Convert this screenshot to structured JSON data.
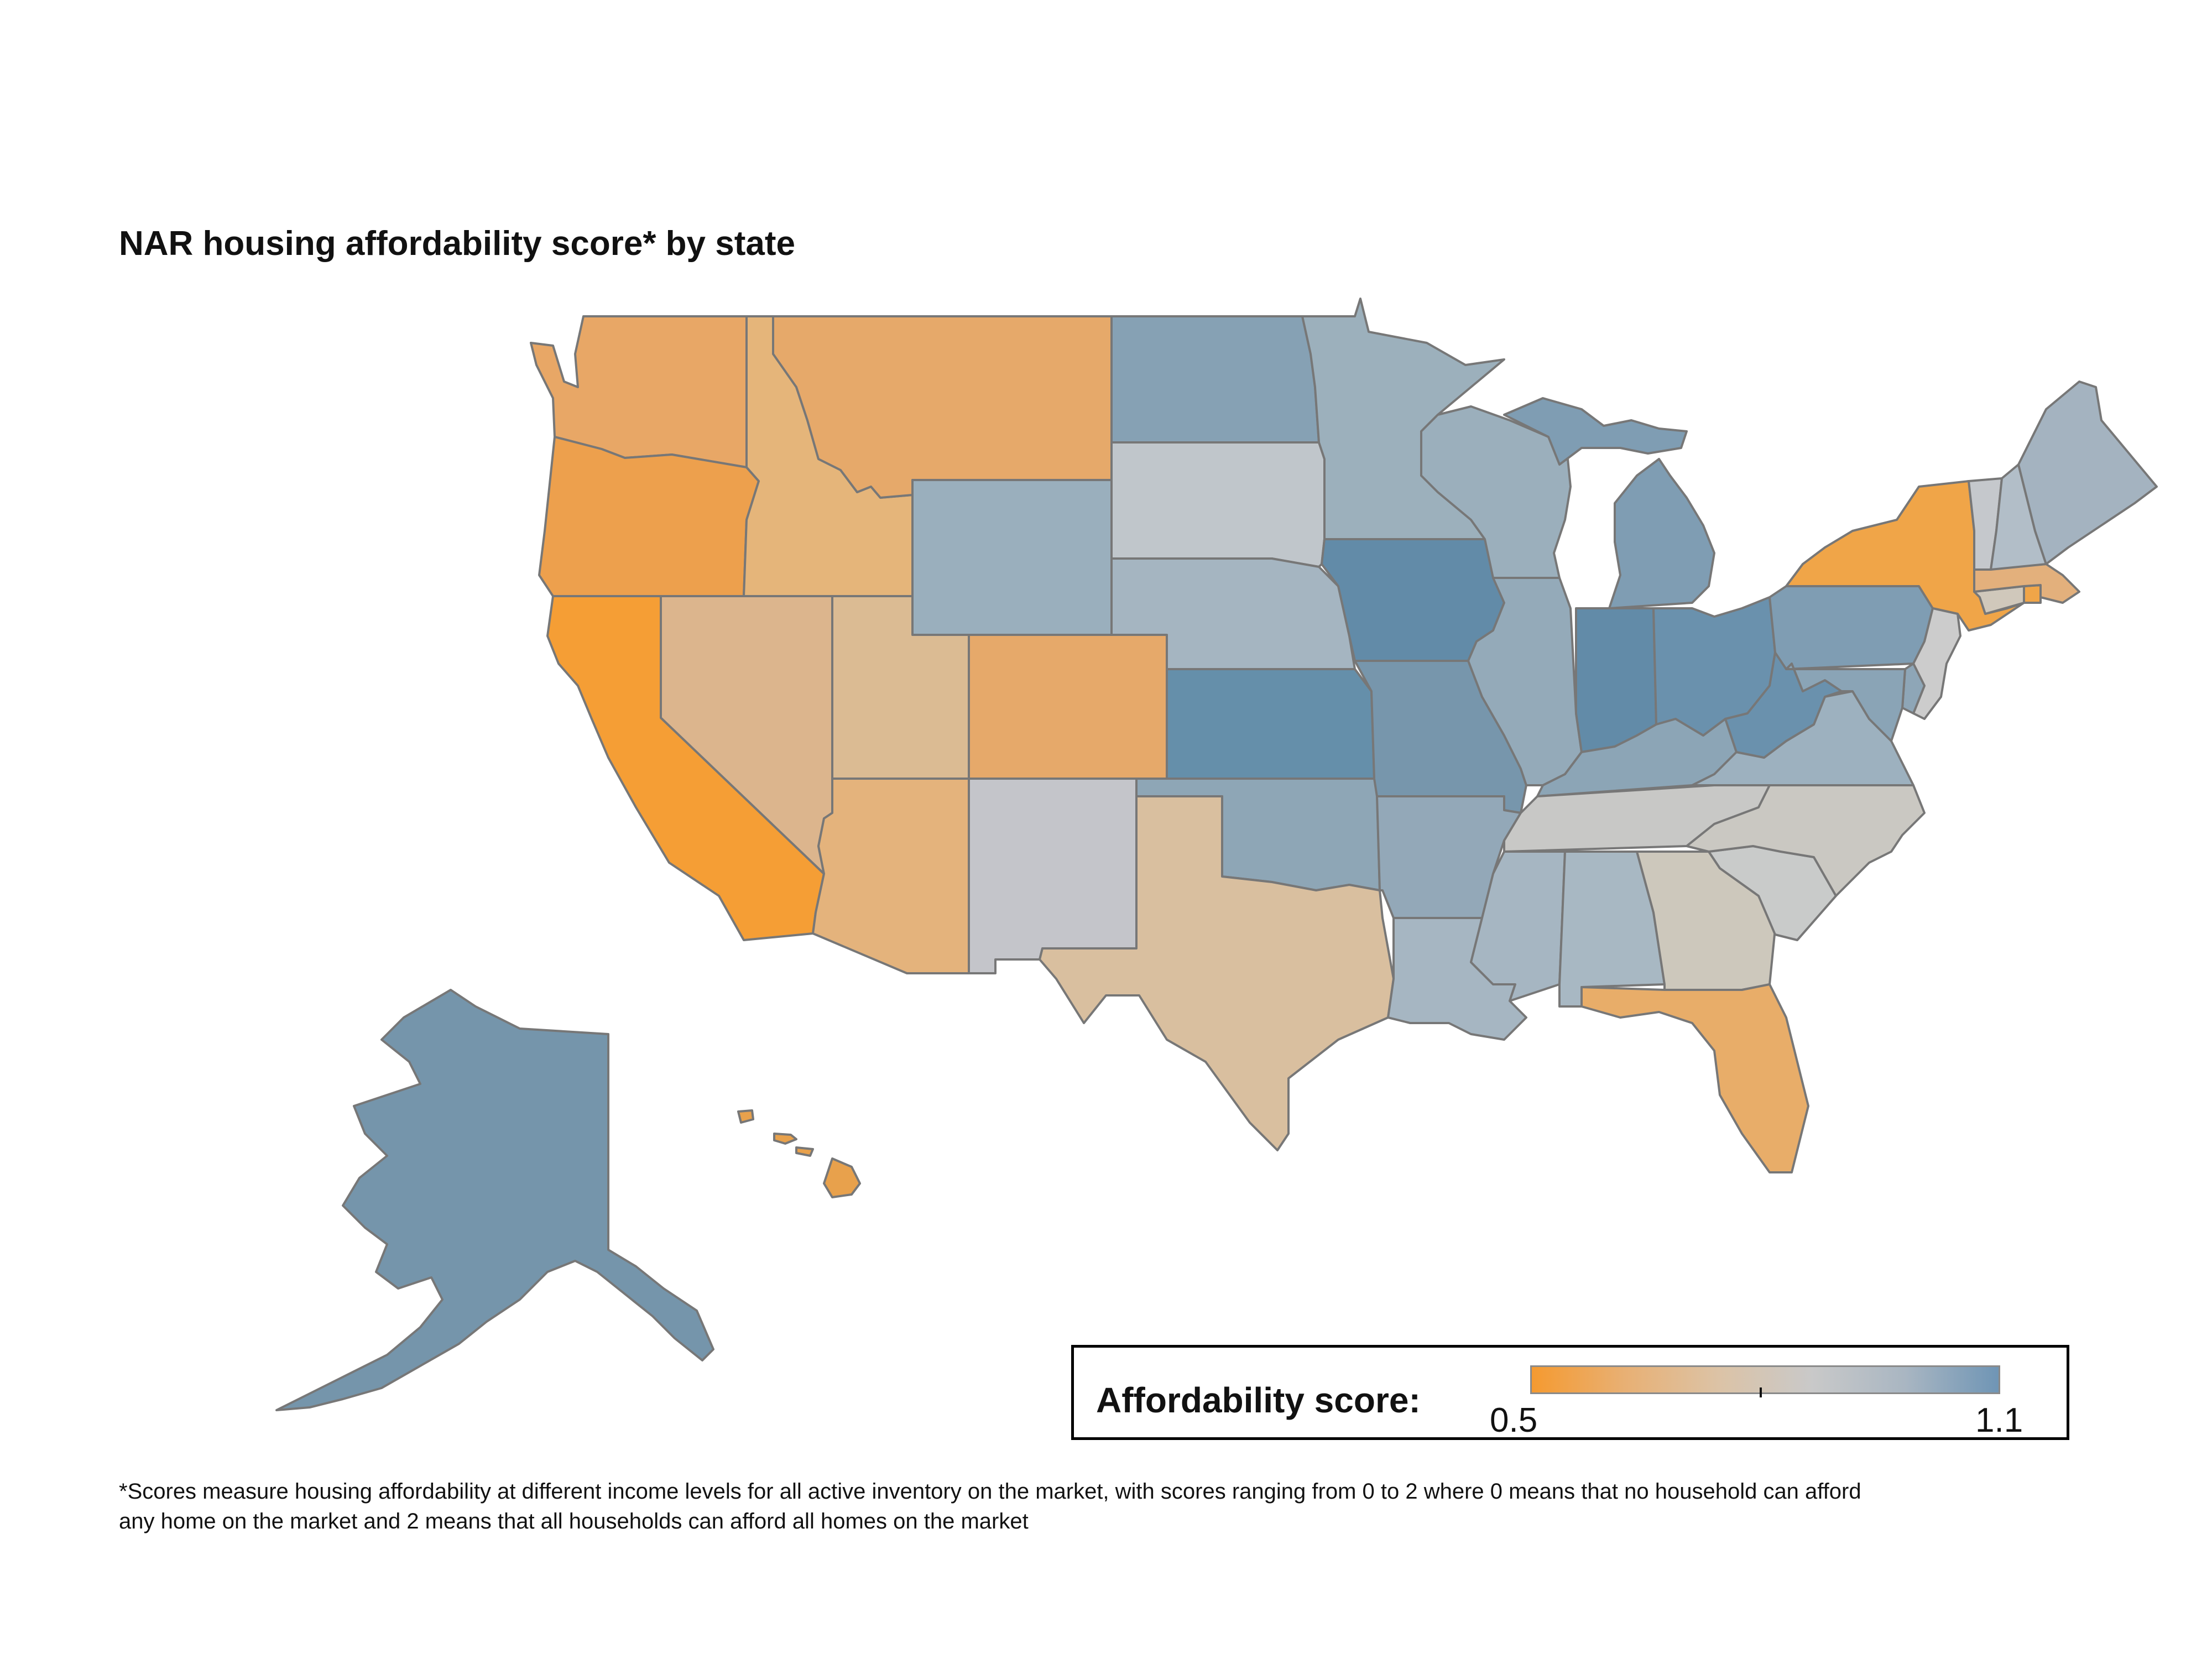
{
  "title": "NAR housing affordability score* by state",
  "footnote": "*Scores measure housing affordability at different income levels for all active inventory on the market, with scores ranging from 0 to 2 where 0 means that no household can afford any home on the market and 2 means that all households can afford all homes on the market",
  "legend": {
    "label": "Affordability score:",
    "min": "0.5",
    "max": "1.1",
    "colors": [
      "#f59a30",
      "#e8b074",
      "#dcc3a6",
      "#c9c9c9",
      "#a9b6c2",
      "#6f95b5"
    ]
  },
  "states": [
    {
      "id": "WA",
      "color": "#e8a766"
    },
    {
      "id": "OR",
      "color": "#eda04d"
    },
    {
      "id": "CA",
      "color": "#f59e35"
    },
    {
      "id": "ID",
      "color": "#e5b57a"
    },
    {
      "id": "NV",
      "color": "#dcb58d"
    },
    {
      "id": "MT",
      "color": "#e6a96a"
    },
    {
      "id": "WY",
      "color": "#9aafbd"
    },
    {
      "id": "UT",
      "color": "#dbbb93"
    },
    {
      "id": "AZ",
      "color": "#e4b37c"
    },
    {
      "id": "CO",
      "color": "#e6a96a"
    },
    {
      "id": "NM",
      "color": "#c4c5ca"
    },
    {
      "id": "ND",
      "color": "#86a1b4"
    },
    {
      "id": "SD",
      "color": "#c0c6cb"
    },
    {
      "id": "NE",
      "color": "#a5b5c1"
    },
    {
      "id": "KS",
      "color": "#658faa"
    },
    {
      "id": "OK",
      "color": "#8ea6b6"
    },
    {
      "id": "TX",
      "color": "#d9bf9f"
    },
    {
      "id": "MN",
      "color": "#9cb0bc"
    },
    {
      "id": "IA",
      "color": "#628ba8"
    },
    {
      "id": "MO",
      "color": "#7796ac"
    },
    {
      "id": "AR",
      "color": "#93a8b8"
    },
    {
      "id": "LA",
      "color": "#a6b6c2"
    },
    {
      "id": "WI",
      "color": "#9bafbc"
    },
    {
      "id": "IL",
      "color": "#94aab9"
    },
    {
      "id": "MI",
      "color": "#7f9db3"
    },
    {
      "id": "IN",
      "color": "#628ba8"
    },
    {
      "id": "OH",
      "color": "#6a91ad"
    },
    {
      "id": "KY",
      "color": "#8ca5b6"
    },
    {
      "id": "TN",
      "color": "#c8c8c6"
    },
    {
      "id": "MS",
      "color": "#a6b6c2"
    },
    {
      "id": "AL",
      "color": "#a8b8c3"
    },
    {
      "id": "GA",
      "color": "#cdc8bc"
    },
    {
      "id": "FL",
      "color": "#e8ad69"
    },
    {
      "id": "SC",
      "color": "#c9cbca"
    },
    {
      "id": "NC",
      "color": "#cac8c2"
    },
    {
      "id": "VA",
      "color": "#9db1bf"
    },
    {
      "id": "WV",
      "color": "#6a91ad"
    },
    {
      "id": "PA",
      "color": "#7f9db3"
    },
    {
      "id": "NY",
      "color": "#f0a548"
    },
    {
      "id": "NJ",
      "color": "#cccccc"
    },
    {
      "id": "MD",
      "color": "#8aa4b6"
    },
    {
      "id": "DE",
      "color": "#8ea6b7"
    },
    {
      "id": "CT",
      "color": "#d0c8bb"
    },
    {
      "id": "RI",
      "color": "#f0a548"
    },
    {
      "id": "MA",
      "color": "#e3b07c"
    },
    {
      "id": "VT",
      "color": "#c5c8cc"
    },
    {
      "id": "NH",
      "color": "#b2bec8"
    },
    {
      "id": "ME",
      "color": "#a4b3c0"
    },
    {
      "id": "AK",
      "color": "#7595ab"
    },
    {
      "id": "HI",
      "color": "#e8a14c"
    }
  ]
}
